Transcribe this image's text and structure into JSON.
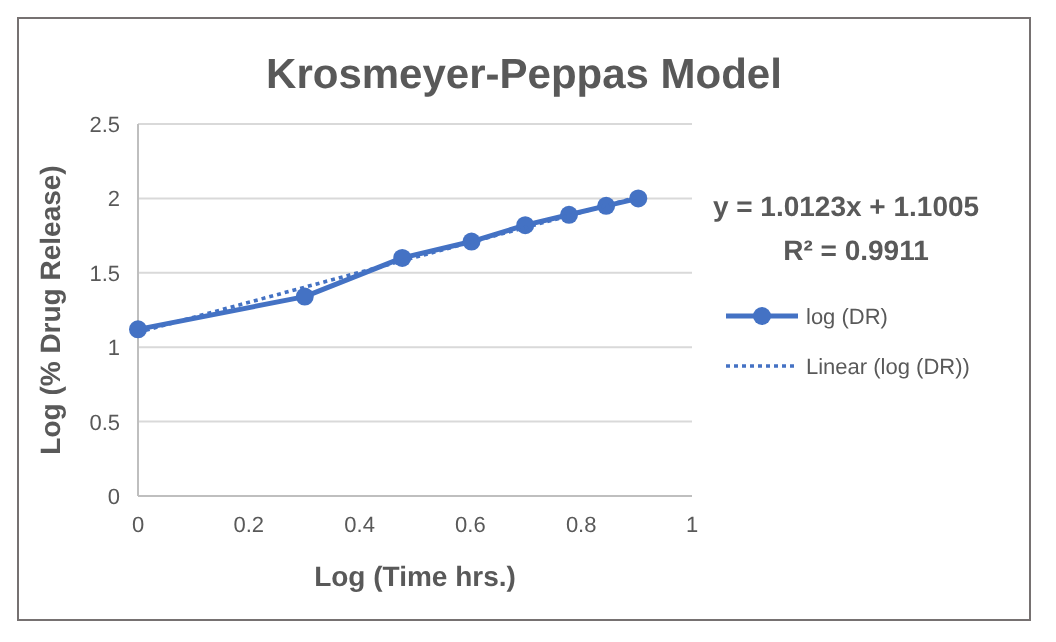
{
  "chart_data": {
    "type": "line",
    "title": "Krosmeyer-Peppas Model",
    "xlabel": "Log (Time hrs.)",
    "ylabel": "Log (% Drug Release)",
    "xlim": [
      0,
      1
    ],
    "xticks": [
      0,
      0.2,
      0.4,
      0.6,
      0.8,
      1
    ],
    "ylim": [
      0,
      2.5
    ],
    "yticks": [
      0,
      0.5,
      1,
      1.5,
      2,
      2.5
    ],
    "grid": "y",
    "legend": "right",
    "series": [
      {
        "name": "log (DR)",
        "color": "#4472c4",
        "x": [
          0,
          0.301,
          0.477,
          0.602,
          0.699,
          0.778,
          0.845,
          0.903
        ],
        "values": [
          1.12,
          1.34,
          1.6,
          1.71,
          1.82,
          1.89,
          1.95,
          2.0
        ],
        "marker": "circle",
        "line_style": "solid"
      },
      {
        "name": "Linear (log (DR))",
        "color": "#4472c4",
        "type": "line",
        "x": [
          0,
          0.903
        ],
        "values": [
          1.1,
          2.01
        ],
        "marker": "none",
        "line_style": "dotted"
      }
    ],
    "annotations": [
      "y = 1.0123x + 1.1005",
      "R² = 0.9911"
    ]
  }
}
